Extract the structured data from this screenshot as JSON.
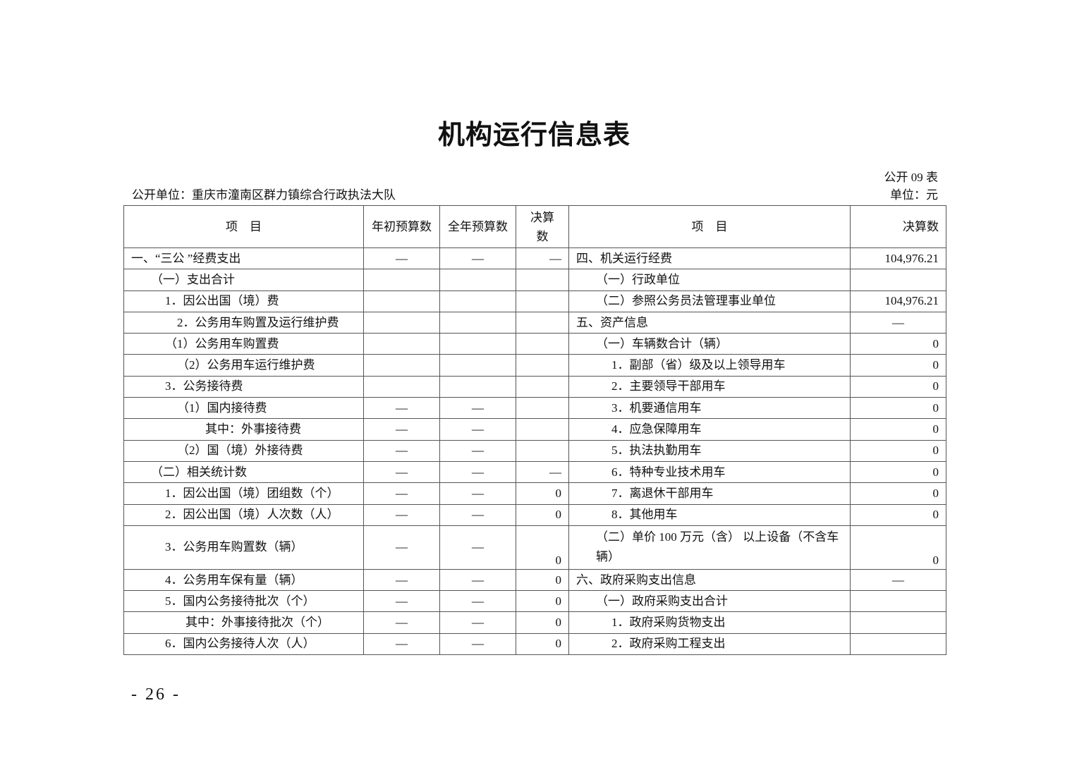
{
  "title": "机构运行信息表",
  "table_no": "公开 09 表",
  "unit": "单位：元",
  "org": "公开单位：重庆市潼南区群力镇综合行政执法大队",
  "headers": [
    "项　目",
    "年初预算数",
    "全年预算数",
    "决算数",
    "项　目",
    "决算数"
  ],
  "rows": [
    {
      "l": "一、“三公 ”经费支出",
      "v1": "—",
      "v2": "—",
      "v3": "—",
      "r": "四、机关运行经费",
      "rv": "104,976.21"
    },
    {
      "l": "（一）支出合计",
      "v1": "",
      "v2": "",
      "v3": "",
      "r": "（一）行政单位",
      "rv": ""
    },
    {
      "l": "1．因公出国（境）费",
      "v1": "",
      "v2": "",
      "v3": "",
      "r": "（二）参照公务员法管理事业单位",
      "rv": "104,976.21"
    },
    {
      "l": "2．公务用车购置及运行维护费",
      "v1": "",
      "v2": "",
      "v3": "",
      "r": "五、资产信息",
      "rv": "—"
    },
    {
      "l": "（1）公务用车购置费",
      "v1": "",
      "v2": "",
      "v3": "",
      "r": "（一）车辆数合计（辆）",
      "rv": "0"
    },
    {
      "l": "（2）公务用车运行维护费",
      "v1": "",
      "v2": "",
      "v3": "",
      "r": "1．副部（省）级及以上领导用车",
      "rv": "0"
    },
    {
      "l": "3．公务接待费",
      "v1": "",
      "v2": "",
      "v3": "",
      "r": "2．主要领导干部用车",
      "rv": "0"
    },
    {
      "l": "（1）国内接待费",
      "v1": "—",
      "v2": "—",
      "v3": "",
      "r": "3．机要通信用车",
      "rv": "0"
    },
    {
      "l": "其中：外事接待费",
      "v1": "—",
      "v2": "—",
      "v3": "",
      "r": "4．应急保障用车",
      "rv": "0"
    },
    {
      "l": "（2）国（境）外接待费",
      "v1": "—",
      "v2": "—",
      "v3": "",
      "r": "5．执法执勤用车",
      "rv": "0"
    },
    {
      "l": "（二）相关统计数",
      "v1": "—",
      "v2": "—",
      "v3": "—",
      "r": "6．特种专业技术用车",
      "rv": "0"
    },
    {
      "l": "1．因公出国（境）团组数（个）",
      "v1": "—",
      "v2": "—",
      "v3": "0",
      "r": "7．离退休干部用车",
      "rv": "0"
    },
    {
      "l": "2．因公出国（境）人次数（人）",
      "v1": "—",
      "v2": "—",
      "v3": "0",
      "r": "8．其他用车",
      "rv": "0"
    },
    {
      "l": "3．公务用车购置数（辆）",
      "v1": "—",
      "v2": "—",
      "v3": "0",
      "r": "（二）单价 100 万元（含） 以上设备（不含车辆）",
      "rv": "0"
    },
    {
      "l": "4．公务用车保有量（辆）",
      "v1": "—",
      "v2": "—",
      "v3": "0",
      "r": "六、政府采购支出信息",
      "rv": "—"
    },
    {
      "l": "5．国内公务接待批次（个）",
      "v1": "—",
      "v2": "—",
      "v3": "0",
      "r": "（一）政府采购支出合计",
      "rv": ""
    },
    {
      "l": "其中：外事接待批次（个）",
      "v1": "—",
      "v2": "—",
      "v3": "0",
      "r": "1．政府采购货物支出",
      "rv": ""
    },
    {
      "l": "6．国内公务接待人次（人）",
      "v1": "—",
      "v2": "—",
      "v3": "0",
      "r": "2．政府采购工程支出",
      "rv": ""
    }
  ],
  "page_number": "- 26 -"
}
